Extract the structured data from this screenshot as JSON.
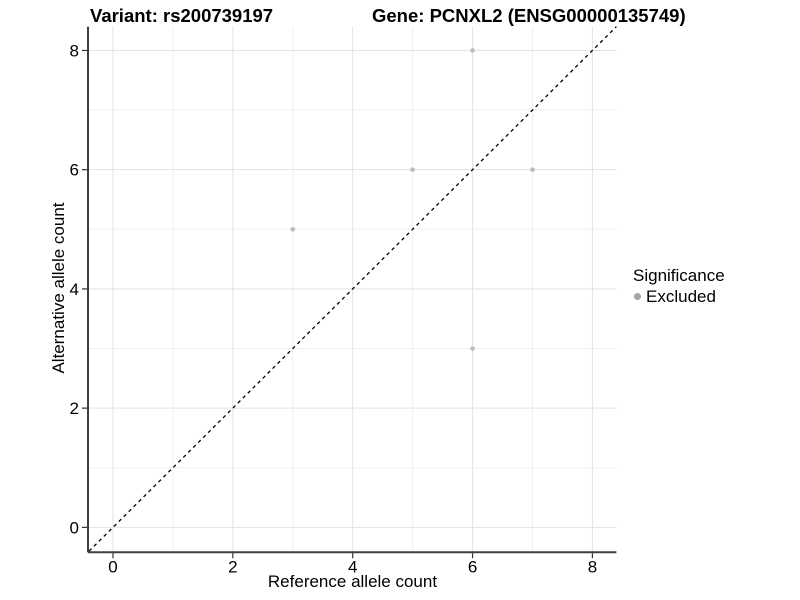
{
  "titles": {
    "variant": "Variant: rs200739197",
    "gene": "Gene: PCNXL2 (ENSG00000135749)"
  },
  "axes": {
    "x_label": "Reference allele count",
    "y_label": "Alternative allele count"
  },
  "legend": {
    "title": "Significance",
    "entries": [
      {
        "label": "Excluded",
        "color": "#a6a6a6"
      }
    ]
  },
  "chart_data": {
    "type": "scatter",
    "title": "Variant: rs200739197   Gene: PCNXL2 (ENSG00000135749)",
    "xlabel": "Reference allele count",
    "ylabel": "Alternative allele count",
    "xlim": [
      -0.4,
      8.4
    ],
    "ylim": [
      -0.4,
      8.4
    ],
    "x_ticks": [
      0,
      2,
      4,
      6,
      8
    ],
    "y_ticks": [
      0,
      2,
      4,
      6,
      8
    ],
    "x_minor_ticks": [
      1,
      3,
      5,
      7
    ],
    "y_minor_ticks": [
      1,
      3,
      5,
      7
    ],
    "grid": true,
    "legend_position": "right",
    "series": [
      {
        "name": "Excluded",
        "color": "#bdbdbd",
        "points": [
          [
            3,
            5
          ],
          [
            5,
            6
          ],
          [
            6,
            8
          ],
          [
            6,
            3
          ],
          [
            7,
            6
          ]
        ]
      }
    ],
    "reference_line": {
      "type": "identity",
      "label": "y = x",
      "color": "#000000",
      "style": "dashed"
    },
    "style": {
      "grid_major_color": "#e3e3e3",
      "grid_minor_color": "#efefef",
      "axis_line_color": "#404040",
      "tick_color": "#333333",
      "point_radius": 2.3
    }
  }
}
